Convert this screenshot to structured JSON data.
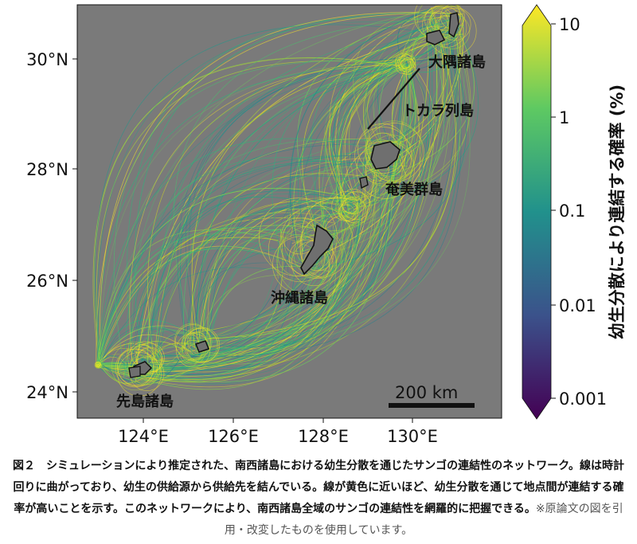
{
  "map": {
    "x_ticks": [
      "124°E",
      "126°E",
      "128°E",
      "130°E"
    ],
    "y_ticks": [
      "30°N",
      "28°N",
      "26°N",
      "24°N"
    ],
    "regions": {
      "osumi": "大隅諸島",
      "tokara": "トカラ列島",
      "amami": "奄美群島",
      "okinawa": "沖縄諸島",
      "sakishima": "先島諸島"
    },
    "scale_bar": "200 km",
    "background_color": "#7a7a7a"
  },
  "colorbar": {
    "label": "幼生分散により連結する確率 (%)",
    "ticks": [
      "10",
      "1",
      "0.1",
      "0.01",
      "0.001"
    ],
    "colormap": "viridis",
    "scale": "log"
  },
  "caption": {
    "text": "図２　シミュレーションにより推定された、南西諸島における幼生分散を通じたサンゴの連結性のネットワーク。線は時計回りに曲がっており、幼生の供給源から供給先を結んでいる。線が黄色に近いほど、幼生分散を通じて地点間が連結する確率が高いことを示す。このネットワークにより、南西諸島全域のサンゴの連結性を網羅的に把握できる。",
    "note": "※原論文の図を引用・改変したものを使用しています。"
  }
}
